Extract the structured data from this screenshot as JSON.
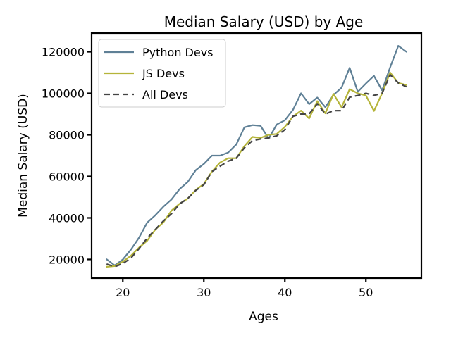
{
  "chart_data": {
    "type": "line",
    "title": "Median Salary (USD) by Age",
    "xlabel": "Ages",
    "ylabel": "Median Salary (USD)",
    "xlim": [
      16.15,
      56.85
    ],
    "ylim": [
      11000,
      129000
    ],
    "xticks": [
      20,
      30,
      40,
      50
    ],
    "yticks": [
      20000,
      40000,
      60000,
      80000,
      100000,
      120000
    ],
    "ytick_labels": [
      "20000",
      "40000",
      "60000",
      "80000",
      "100000",
      "120000"
    ],
    "legend_position": "upper-left",
    "grid": false,
    "x": [
      18,
      19,
      20,
      21,
      22,
      23,
      24,
      25,
      26,
      27,
      28,
      29,
      30,
      31,
      32,
      33,
      34,
      35,
      36,
      37,
      38,
      39,
      40,
      41,
      42,
      43,
      44,
      45,
      46,
      47,
      48,
      49,
      50,
      51,
      52,
      53,
      54,
      55
    ],
    "series": [
      {
        "name": "Python Devs",
        "color": "#5f8096",
        "dash": "solid",
        "values": [
          20046,
          17100,
          20000,
          24744,
          30500,
          37732,
          41247,
          45372,
          48876,
          53850,
          57287,
          63016,
          65998,
          70003,
          70000,
          71496,
          75370,
          83640,
          84666,
          84392,
          78254,
          85000,
          87038,
          91991,
          100000,
          94796,
          97962,
          93302,
          99240,
          102736,
          112285,
          100771,
          104708,
          108423,
          101407,
          112542,
          122870,
          120000
        ]
      },
      {
        "name": "JS Devs",
        "color": "#b5b43a",
        "dash": "solid",
        "values": [
          16446,
          16791,
          18942,
          21780,
          25704,
          29000,
          34372,
          37810,
          43515,
          46823,
          49293,
          53437,
          56373,
          62375,
          66674,
          68745,
          68746,
          74583,
          79000,
          78508,
          79996,
          80403,
          83820,
          88833,
          91660,
          87892,
          96243,
          90340,
          99737,
          93289,
          102001,
          100000,
          99000,
          91500,
          100000,
          110000,
          105000,
          104000
        ]
      },
      {
        "name": "All Devs",
        "color": "#444444",
        "dash": "dashed",
        "values": [
          17784,
          16500,
          18012,
          20628,
          25206,
          30252,
          34368,
          38496,
          42000,
          46752,
          49320,
          53200,
          56000,
          62316,
          64928,
          67317,
          68748,
          73752,
          77232,
          78000,
          78508,
          79536,
          82488,
          88935,
          90000,
          90056,
          95000,
          90000,
          91633,
          91660,
          98150,
          98964,
          100000,
          98988,
          100000,
          108923,
          105000,
          103117
        ]
      }
    ]
  }
}
